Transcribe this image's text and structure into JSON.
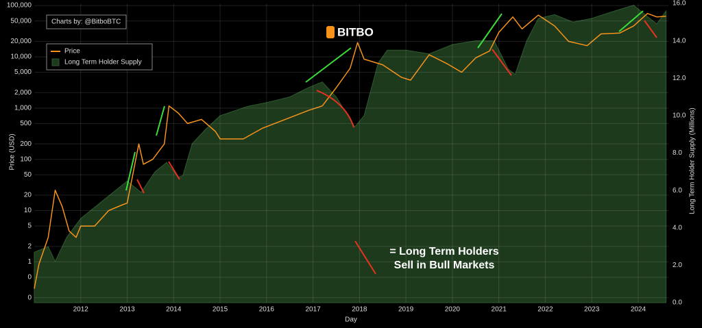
{
  "chart_data": {
    "type": "line",
    "credit": "Charts by: @BitboBTC",
    "logo": "BITBO",
    "annotation": [
      "= Long Term Holders",
      "Sell in Bull Markets"
    ],
    "xlabel": "Day",
    "ylabel": "Price (USD)",
    "y2label": "Long Term Holder Supply (Millions)",
    "xlim": [
      2011.0,
      2024.65
    ],
    "xticks": [
      2012,
      2013,
      2014,
      2015,
      2016,
      2017,
      2018,
      2019,
      2020,
      2021,
      2022,
      2023,
      2024
    ],
    "ylog": true,
    "ylim": [
      0.16,
      110000
    ],
    "yticks": [
      {
        "value": 0.2,
        "label": "0"
      },
      {
        "value": 0.5,
        "label": "0"
      },
      1,
      2,
      5,
      10,
      20,
      50,
      100,
      200,
      500,
      {
        "value": 1000,
        "label": "1,000"
      },
      {
        "value": 2000,
        "label": "2,000"
      },
      {
        "value": 5000,
        "label": "5,000"
      },
      {
        "value": 10000,
        "label": "10,000"
      },
      {
        "value": 20000,
        "label": "20,000"
      },
      {
        "value": 50000,
        "label": "50,000"
      },
      {
        "value": 100000,
        "label": "100,000"
      }
    ],
    "y2lim": [
      0,
      16
    ],
    "y2ticks": [
      {
        "value": 0,
        "label": "0.0"
      },
      {
        "value": 2,
        "label": "2.0"
      },
      {
        "value": 4,
        "label": "4.0"
      },
      {
        "value": 6,
        "label": "6.0"
      },
      {
        "value": 8,
        "label": "8.0"
      },
      {
        "value": 10,
        "label": "10.0"
      },
      {
        "value": 12,
        "label": "12.0"
      },
      {
        "value": 14,
        "label": "14.0"
      },
      {
        "value": 16,
        "label": "16.0"
      }
    ],
    "grid": true,
    "legend": "upper left",
    "series": [
      {
        "name": "Price",
        "color": "#f7931a",
        "x": [
          2011.0,
          2011.1,
          2011.3,
          2011.45,
          2011.6,
          2011.75,
          2011.9,
          2012.0,
          2012.3,
          2012.6,
          2012.9,
          2013.0,
          2013.25,
          2013.35,
          2013.55,
          2013.8,
          2013.9,
          2014.1,
          2014.3,
          2014.6,
          2014.9,
          2015.0,
          2015.5,
          2015.9,
          2016.5,
          2016.9,
          2017.2,
          2017.5,
          2017.8,
          2017.96,
          2018.1,
          2018.5,
          2018.9,
          2019.1,
          2019.5,
          2019.9,
          2020.2,
          2020.5,
          2020.8,
          2021.0,
          2021.3,
          2021.5,
          2021.85,
          2022.2,
          2022.5,
          2022.9,
          2023.2,
          2023.6,
          2023.9,
          2024.2,
          2024.4,
          2024.6
        ],
        "values": [
          0.3,
          0.9,
          3,
          25,
          12,
          4,
          3,
          5,
          5,
          10,
          13,
          14,
          200,
          80,
          100,
          200,
          1100,
          800,
          500,
          600,
          350,
          250,
          250,
          400,
          650,
          900,
          1100,
          2500,
          6000,
          19000,
          9000,
          7000,
          4000,
          3500,
          11000,
          7200,
          5000,
          9500,
          13000,
          30000,
          60000,
          35000,
          65000,
          40000,
          20000,
          16500,
          28000,
          29000,
          40000,
          70000,
          60000,
          62000
        ]
      },
      {
        "name": "Long Term Holder Supply",
        "color": "#1d3a1d",
        "axis": "y2",
        "fill": true,
        "x": [
          2011.0,
          2011.3,
          2011.45,
          2011.7,
          2012.0,
          2012.5,
          2013.0,
          2013.3,
          2013.6,
          2013.85,
          2014.1,
          2014.2,
          2014.4,
          2014.7,
          2015.0,
          2015.6,
          2016.0,
          2016.5,
          2016.9,
          2017.2,
          2017.5,
          2017.9,
          2018.1,
          2018.4,
          2018.6,
          2019.0,
          2019.5,
          2020.0,
          2020.5,
          2020.9,
          2021.2,
          2021.35,
          2021.6,
          2021.85,
          2022.2,
          2022.6,
          2023.0,
          2023.5,
          2023.9,
          2024.2,
          2024.4,
          2024.6
        ],
        "values": [
          2.7,
          3.0,
          2.2,
          3.5,
          4.5,
          5.5,
          6.5,
          5.9,
          7.0,
          7.5,
          6.7,
          6.8,
          8.5,
          9.3,
          10.0,
          10.5,
          10.7,
          11.0,
          11.5,
          11.8,
          11.0,
          9.4,
          10.0,
          12.8,
          13.5,
          13.5,
          13.3,
          13.8,
          14.0,
          14.0,
          12.5,
          12.2,
          14.0,
          15.2,
          15.4,
          15.0,
          15.2,
          15.6,
          15.9,
          15.3,
          14.9,
          15.6
        ]
      }
    ]
  }
}
